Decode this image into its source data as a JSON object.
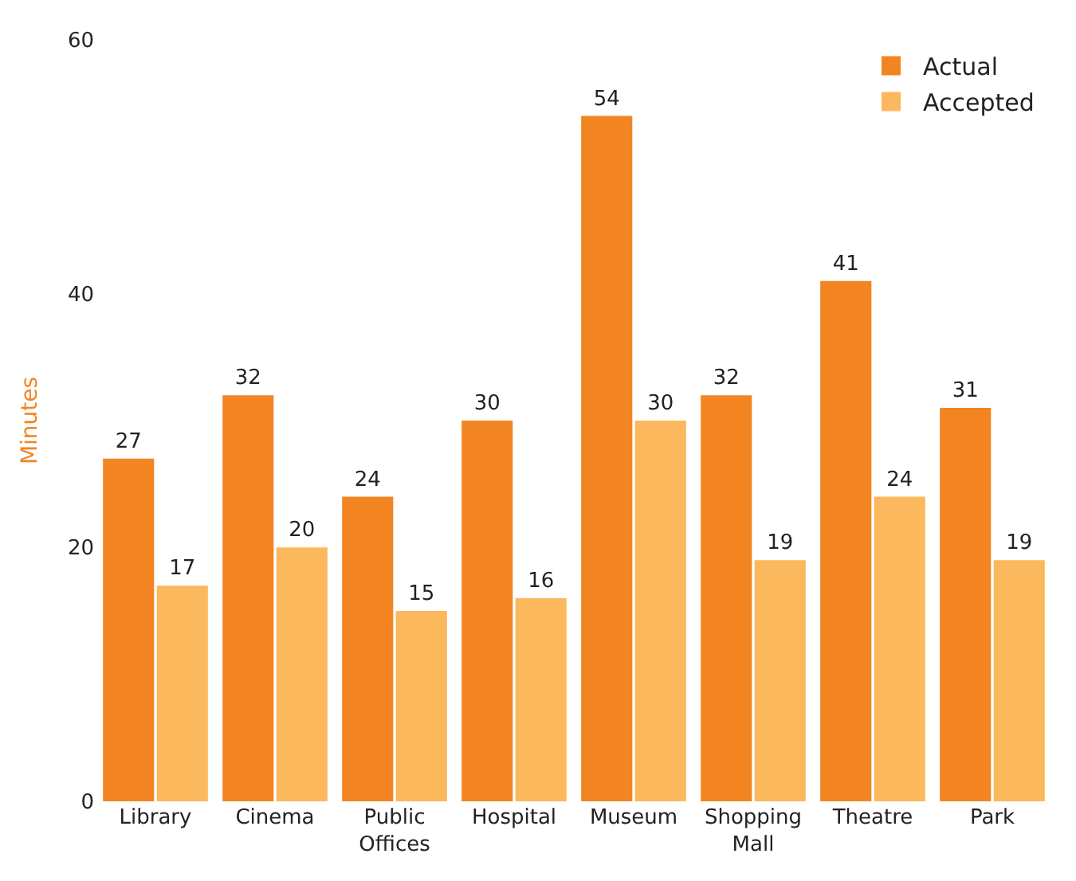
{
  "chart_data": {
    "type": "bar",
    "ylabel": "Minutes",
    "categories": [
      "Library",
      "Cinema",
      "Public Offices",
      "Hospital",
      "Museum",
      "Shopping Mall",
      "Theatre",
      "Park"
    ],
    "series": [
      {
        "name": "Actual",
        "color": "#f28522",
        "values": [
          27,
          32,
          24,
          30,
          54,
          32,
          41,
          31
        ]
      },
      {
        "name": "Accepted",
        "color": "#fbb85d",
        "values": [
          17,
          20,
          15,
          16,
          30,
          19,
          24,
          19
        ]
      }
    ],
    "ylim": [
      0,
      60
    ],
    "yticks": [
      0,
      20,
      40,
      60
    ],
    "legend": "top right",
    "data_labels": true
  }
}
